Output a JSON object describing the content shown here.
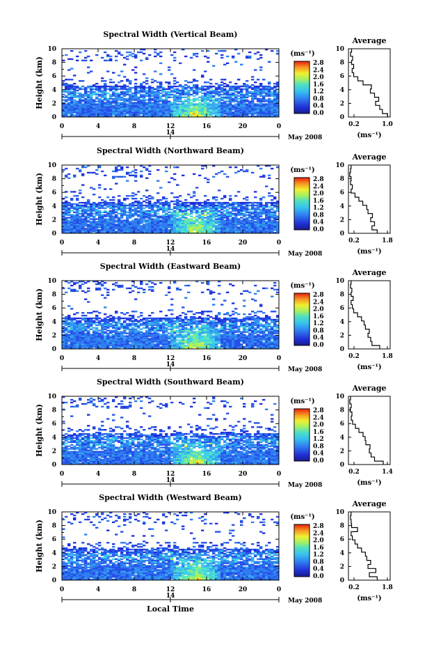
{
  "chart_data": [
    {
      "type": "heatmap",
      "title": "Spectral Width (Vertical Beam)",
      "ylabel": "Height (km)",
      "x_ticks": [
        "0",
        "4",
        "8",
        "12",
        "16",
        "20",
        "0"
      ],
      "y_ticks": [
        "0",
        "2",
        "4",
        "6",
        "8",
        "10"
      ],
      "xlim": [
        0,
        24
      ],
      "ylim": [
        0,
        10
      ],
      "date_label": "14",
      "month_label": "May 2008",
      "colorbar": {
        "unit": "(ms⁻¹)",
        "ticks": [
          "0.0",
          "0.4",
          "0.8",
          "1.2",
          "1.6",
          "2.0",
          "2.4",
          "2.8"
        ],
        "range": [
          0,
          2.8
        ]
      },
      "avg_profile": {
        "title": "Average",
        "xlabel": "(ms⁻¹)",
        "x_ticks": [
          "0.2",
          "1.0"
        ],
        "xlim": [
          0.2,
          1.0
        ],
        "heights": [
          0.2,
          0.8,
          1.4,
          2.0,
          2.6,
          3.2,
          3.8,
          4.4,
          5.0,
          5.6,
          6.2,
          6.8,
          7.4,
          8.0,
          8.6,
          9.2,
          9.8
        ],
        "values": [
          0.95,
          0.85,
          0.8,
          0.72,
          0.78,
          0.7,
          0.62,
          0.64,
          0.48,
          0.38,
          0.3,
          0.27,
          0.3,
          0.26,
          0.28,
          0.24,
          0.26
        ]
      }
    },
    {
      "type": "heatmap",
      "title": "Spectral Width (Northward Beam)",
      "ylabel": "Height (km)",
      "x_ticks": [
        "0",
        "4",
        "8",
        "12",
        "16",
        "20",
        "0"
      ],
      "y_ticks": [
        "0",
        "2",
        "4",
        "6",
        "8",
        "10"
      ],
      "xlim": [
        0,
        24
      ],
      "ylim": [
        0,
        10
      ],
      "date_label": "14",
      "month_label": "May 2008",
      "colorbar": {
        "unit": "(ms⁻¹)",
        "ticks": [
          "0.0",
          "0.4",
          "0.8",
          "1.2",
          "1.6",
          "2.0",
          "2.4",
          "2.8"
        ],
        "range": [
          0,
          2.8
        ]
      },
      "avg_profile": {
        "title": "Average",
        "xlabel": "(ms⁻¹)",
        "x_ticks": [
          "0.2",
          "1.8"
        ],
        "xlim": [
          0.2,
          1.8
        ],
        "heights": [
          0.2,
          0.8,
          1.4,
          2.0,
          2.6,
          3.2,
          3.8,
          4.4,
          5.0,
          5.6,
          6.2,
          6.8,
          7.4,
          8.0,
          8.6,
          9.2,
          9.8
        ],
        "values": [
          1.3,
          1.1,
          1.2,
          1.05,
          1.12,
          0.95,
          0.9,
          0.75,
          0.6,
          0.45,
          0.3,
          0.35,
          0.28,
          0.3,
          0.25,
          0.28,
          0.3
        ]
      }
    },
    {
      "type": "heatmap",
      "title": "Spectral Width (Eastward Beam)",
      "ylabel": "Height (km)",
      "x_ticks": [
        "0",
        "4",
        "8",
        "12",
        "16",
        "20",
        "0"
      ],
      "y_ticks": [
        "0",
        "2",
        "4",
        "6",
        "8",
        "10"
      ],
      "xlim": [
        0,
        24
      ],
      "ylim": [
        0,
        10
      ],
      "date_label": "14",
      "month_label": "May 2008",
      "colorbar": {
        "unit": "(ms⁻¹)",
        "ticks": [
          "0.0",
          "0.4",
          "0.8",
          "1.2",
          "1.6",
          "2.0",
          "2.4",
          "2.8"
        ],
        "range": [
          0,
          2.8
        ]
      },
      "avg_profile": {
        "title": "Average",
        "xlabel": "(ms⁻¹)",
        "x_ticks": [
          "0.2",
          "1.8"
        ],
        "xlim": [
          0.2,
          1.8
        ],
        "heights": [
          0.2,
          0.8,
          1.4,
          2.0,
          2.6,
          3.2,
          3.8,
          4.4,
          5.0,
          5.6,
          6.2,
          6.8,
          7.4,
          8.0,
          8.6,
          9.2,
          9.8
        ],
        "values": [
          1.4,
          1.1,
          1.05,
          0.95,
          1.0,
          0.85,
          0.8,
          0.7,
          0.55,
          0.4,
          0.35,
          0.3,
          0.38,
          0.3,
          0.33,
          0.28,
          0.3
        ]
      }
    },
    {
      "type": "heatmap",
      "title": "Spectral Width (Southward Beam)",
      "ylabel": "Height (km)",
      "x_ticks": [
        "0",
        "4",
        "8",
        "12",
        "16",
        "20",
        "0"
      ],
      "y_ticks": [
        "0",
        "2",
        "4",
        "6",
        "8",
        "10"
      ],
      "xlim": [
        0,
        24
      ],
      "ylim": [
        0,
        10
      ],
      "date_label": "14",
      "month_label": "May 2008",
      "colorbar": {
        "unit": "(ms⁻¹)",
        "ticks": [
          "0.0",
          "0.4",
          "0.8",
          "1.2",
          "1.6",
          "2.0",
          "2.4",
          "2.8"
        ],
        "range": [
          0,
          2.8
        ]
      },
      "avg_profile": {
        "title": "Average",
        "xlabel": "(ms⁻¹)",
        "x_ticks": [
          "0.2",
          "1.4"
        ],
        "xlim": [
          0.2,
          1.4
        ],
        "heights": [
          0.2,
          0.8,
          1.4,
          2.0,
          2.6,
          3.2,
          3.8,
          4.4,
          5.0,
          5.6,
          6.2,
          6.8,
          7.4,
          8.0,
          8.6,
          9.2,
          9.8
        ],
        "values": [
          1.2,
          0.95,
          0.85,
          0.8,
          0.82,
          0.7,
          0.68,
          0.62,
          0.5,
          0.4,
          0.32,
          0.28,
          0.3,
          0.25,
          0.28,
          0.24,
          0.26
        ]
      }
    },
    {
      "type": "heatmap",
      "title": "Spectral Width (Westward Beam)",
      "ylabel": "Height (km)",
      "xlabel": "Local Time",
      "x_ticks": [
        "0",
        "4",
        "8",
        "12",
        "16",
        "20",
        "0"
      ],
      "y_ticks": [
        "0",
        "2",
        "4",
        "6",
        "8",
        "10"
      ],
      "xlim": [
        0,
        24
      ],
      "ylim": [
        0,
        10
      ],
      "date_label": "14",
      "month_label": "May 2008",
      "colorbar": {
        "unit": "(ms⁻¹)",
        "ticks": [
          "0.0",
          "0.4",
          "0.8",
          "1.2",
          "1.6",
          "2.0",
          "2.4",
          "2.8"
        ],
        "range": [
          0,
          2.8
        ]
      },
      "avg_profile": {
        "title": "Average",
        "xlabel": "(ms⁻¹)",
        "x_ticks": [
          "0.2",
          "1.8"
        ],
        "xlim": [
          0.2,
          1.8
        ],
        "heights": [
          0.2,
          0.8,
          1.4,
          2.0,
          2.6,
          3.2,
          3.8,
          4.4,
          5.0,
          5.6,
          6.2,
          6.8,
          7.4,
          8.0,
          8.6,
          9.2,
          9.8
        ],
        "values": [
          1.3,
          1.0,
          1.25,
          0.95,
          1.05,
          0.9,
          0.85,
          0.7,
          0.55,
          0.45,
          0.35,
          0.3,
          0.55,
          0.32,
          0.3,
          0.28,
          0.3
        ]
      }
    }
  ]
}
